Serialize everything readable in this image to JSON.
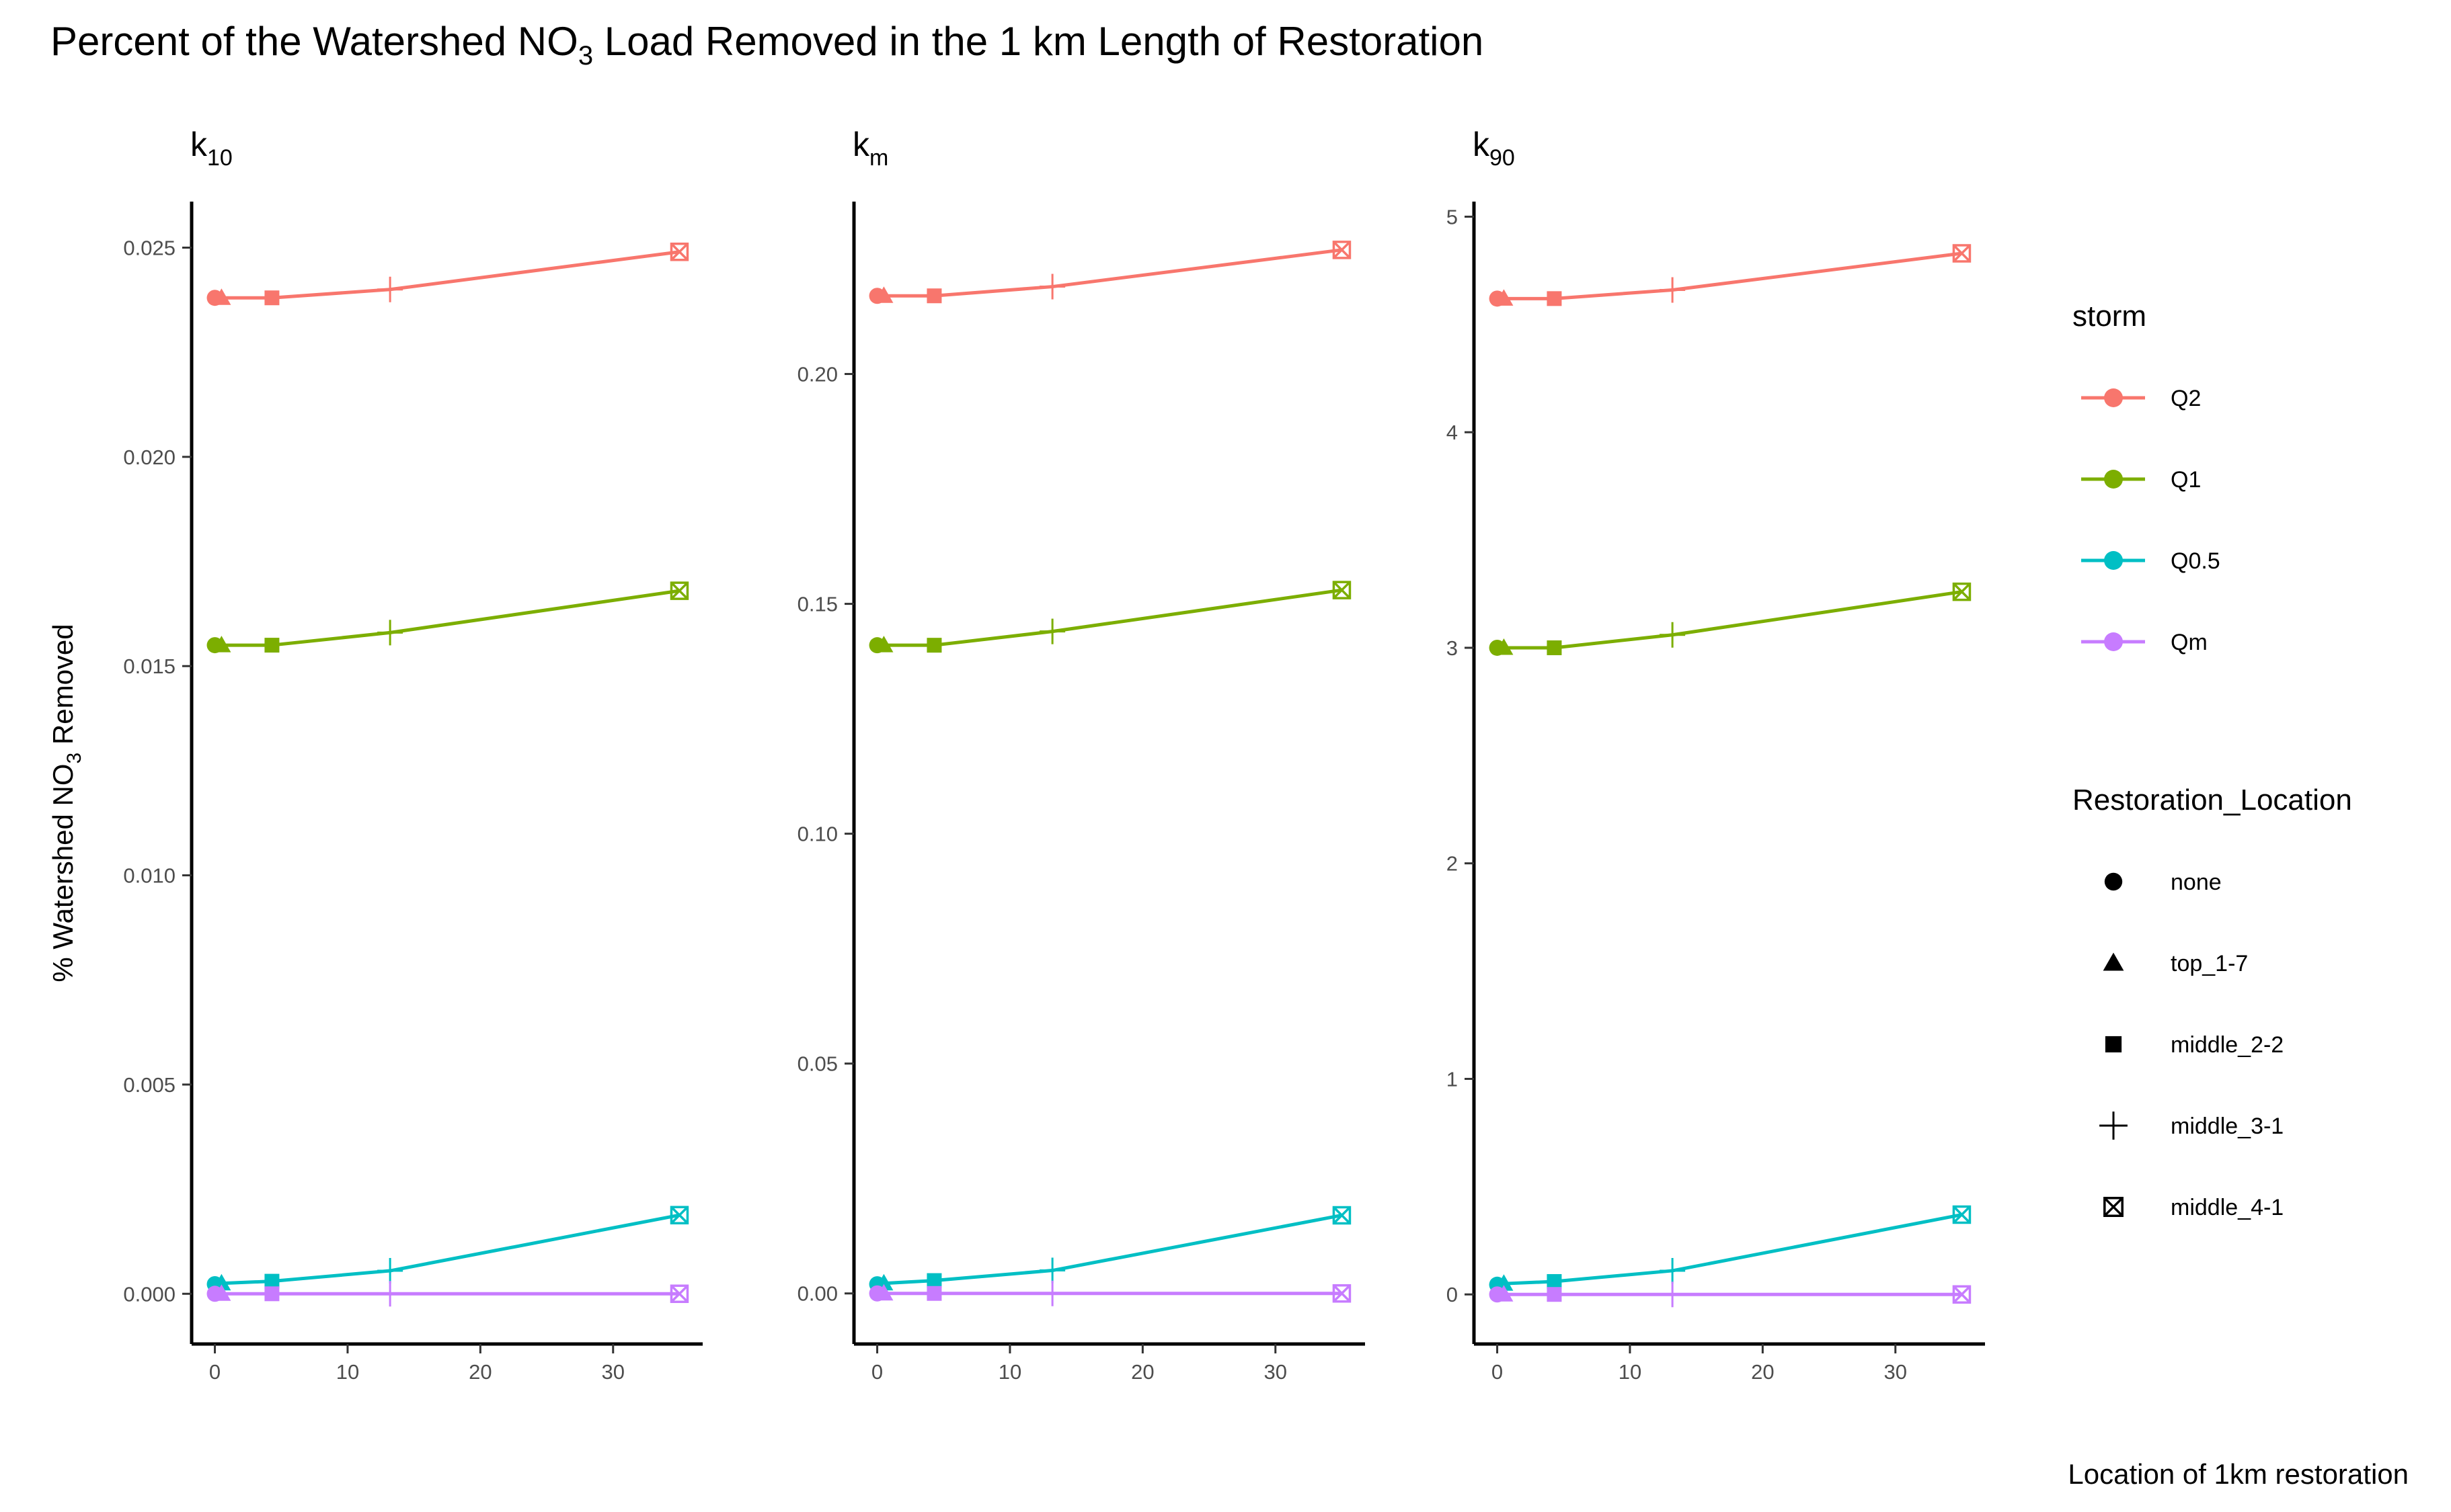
{
  "title": {
    "before": "Percent of the Watershed NO",
    "sub": "3",
    "after": " Load Removed in the 1 km Length of Restoration"
  },
  "y_axis_title": {
    "before": "% Watershed NO",
    "sub": "3",
    "after": " Removed"
  },
  "x_axis_title": "Location of 1km restoration",
  "colors": {
    "Q2": "#F8766D",
    "Q1": "#7CAE00",
    "Q0.5": "#00BFC4",
    "Qm": "#C77CFF"
  },
  "chart_data": {
    "type": "line",
    "x": [
      0,
      0.5,
      4.3,
      13.2,
      35
    ],
    "shapes": [
      "none",
      "top_1-7",
      "middle_2-2",
      "middle_3-1",
      "middle_4-1"
    ],
    "legend_placement": "right",
    "grid": false,
    "panels": [
      {
        "label": "k",
        "label_sub": "10",
        "ylim": [
          -0.0012,
          0.0261
        ],
        "yticks": [
          0.0,
          0.005,
          0.01,
          0.015,
          0.02,
          0.025
        ],
        "ytick_labels": [
          "0.000",
          "0.005",
          "0.010",
          "0.015",
          "0.020",
          "0.025"
        ],
        "xlim": [
          -1.75,
          36.75
        ],
        "xticks": [
          0,
          10,
          20,
          30
        ],
        "xtick_labels": [
          "0",
          "10",
          "20",
          "30"
        ],
        "series": [
          {
            "name": "Q2",
            "values": [
              0.0238,
              0.0238,
              0.0238,
              0.024,
              0.0249
            ]
          },
          {
            "name": "Q1",
            "values": [
              0.0155,
              0.0155,
              0.0155,
              0.0158,
              0.0168
            ]
          },
          {
            "name": "Q0.5",
            "values": [
              0.00023,
              0.00025,
              0.0003,
              0.00055,
              0.00188
            ]
          },
          {
            "name": "Qm",
            "values": [
              0.0,
              0.0,
              0.0,
              0.0,
              0.0
            ]
          }
        ]
      },
      {
        "label": "k",
        "label_sub": "m",
        "ylim": [
          -0.011,
          0.2375
        ],
        "yticks": [
          0.0,
          0.05,
          0.1,
          0.15,
          0.2
        ],
        "ytick_labels": [
          "0.00",
          "0.05",
          "0.10",
          "0.15",
          "0.20"
        ],
        "xlim": [
          -1.75,
          36.75
        ],
        "xticks": [
          0,
          10,
          20,
          30
        ],
        "xtick_labels": [
          "0",
          "10",
          "20",
          "30"
        ],
        "series": [
          {
            "name": "Q2",
            "values": [
              0.217,
              0.217,
              0.217,
              0.219,
              0.227
            ]
          },
          {
            "name": "Q1",
            "values": [
              0.141,
              0.141,
              0.141,
              0.144,
              0.153
            ]
          },
          {
            "name": "Q0.5",
            "values": [
              0.002,
              0.0022,
              0.0028,
              0.005,
              0.017
            ]
          },
          {
            "name": "Qm",
            "values": [
              0.0,
              0.0,
              0.0,
              0.0,
              0.0
            ]
          }
        ]
      },
      {
        "label": "k",
        "label_sub": "90",
        "ylim": [
          -0.23,
          5.07
        ],
        "yticks": [
          0,
          1,
          2,
          3,
          4,
          5
        ],
        "ytick_labels": [
          "0",
          "1",
          "2",
          "3",
          "4",
          "5"
        ],
        "xlim": [
          -1.75,
          36.75
        ],
        "xticks": [
          0,
          10,
          20,
          30
        ],
        "xtick_labels": [
          "0",
          "10",
          "20",
          "30"
        ],
        "series": [
          {
            "name": "Q2",
            "values": [
              4.62,
              4.62,
              4.62,
              4.66,
              4.83
            ]
          },
          {
            "name": "Q1",
            "values": [
              3.0,
              3.0,
              3.0,
              3.06,
              3.26
            ]
          },
          {
            "name": "Q0.5",
            "values": [
              0.045,
              0.05,
              0.06,
              0.11,
              0.37
            ]
          },
          {
            "name": "Qm",
            "values": [
              0.0,
              0.0,
              0.0,
              0.0,
              0.0
            ]
          }
        ]
      }
    ]
  },
  "legend": {
    "storm_title": "storm",
    "storm_items": [
      "Q2",
      "Q1",
      "Q0.5",
      "Qm"
    ],
    "location_title": "Restoration_Location",
    "location_items": [
      "none",
      "top_1-7",
      "middle_2-2",
      "middle_3-1",
      "middle_4-1"
    ]
  }
}
